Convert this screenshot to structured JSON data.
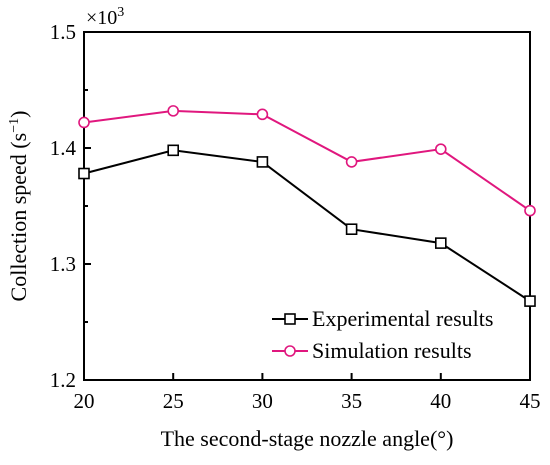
{
  "chart_data": {
    "type": "line",
    "x": [
      20,
      25,
      30,
      35,
      40,
      45
    ],
    "series": [
      {
        "name": "Experimental results",
        "values": [
          1.378,
          1.398,
          1.388,
          1.33,
          1.318,
          1.268
        ],
        "color": "#000000",
        "marker": "square"
      },
      {
        "name": "Simulation results",
        "values": [
          1.422,
          1.432,
          1.429,
          1.388,
          1.399,
          1.346
        ],
        "color": "#e0177e",
        "marker": "circle"
      }
    ],
    "xlabel": "The second-stage nozzle angle(°)",
    "ylabel": "Collection speed (s",
    "ylabel_sup": "−1",
    "ylabel_close": ")",
    "multiplier": "×10",
    "multiplier_exp": "3",
    "xlim": [
      20,
      45
    ],
    "ylim": [
      1.2,
      1.5
    ],
    "xticks": [
      "20",
      "25",
      "30",
      "35",
      "40",
      "45"
    ],
    "yticks": [
      "1.2",
      "1.3",
      "1.4",
      "1.5"
    ],
    "grid": false,
    "legend_position": "bottom-right"
  }
}
